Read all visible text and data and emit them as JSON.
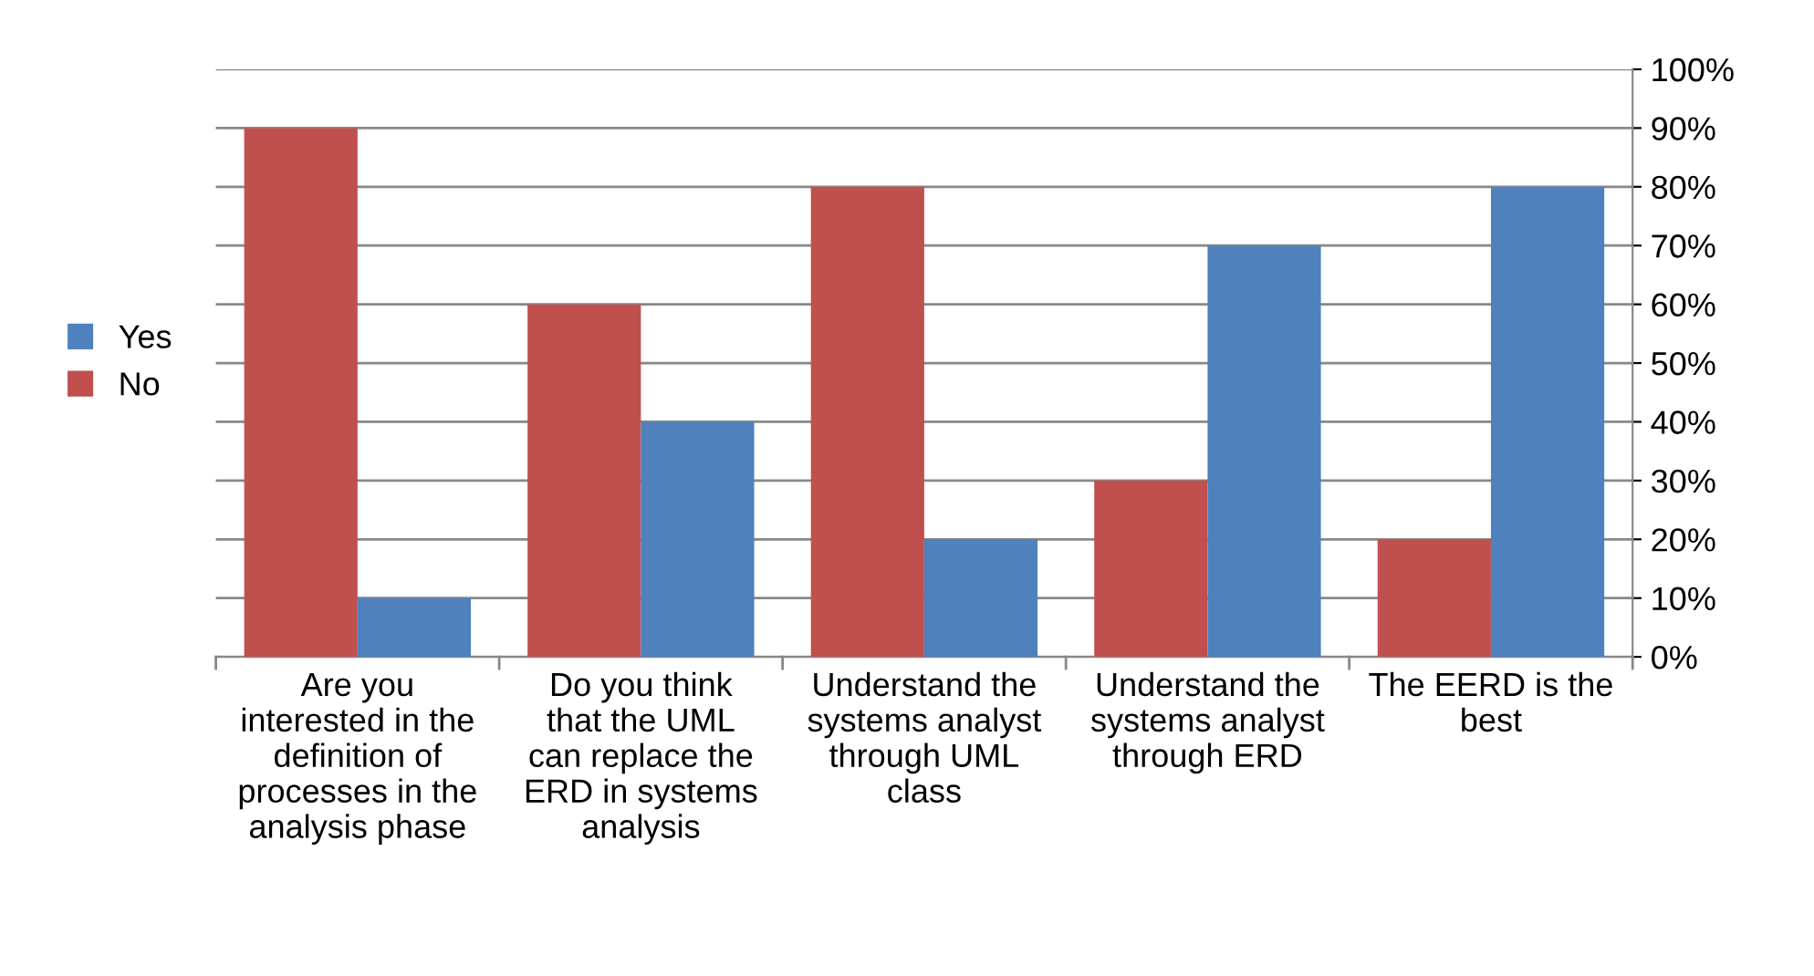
{
  "chart_data": {
    "type": "bar",
    "categories": [
      "Are you\ninterested in the\ndefinition of\nprocesses in the\nanalysis phase",
      "Do you think\nthat the UML\ncan replace the\nERD in systems\nanalysis",
      "Understand the\nsystems analyst\nthrough UML\nclass",
      "Understand the\nsystems analyst\nthrough ERD",
      "The EERD is the\nbest"
    ],
    "series": [
      {
        "name": "No",
        "color": "#c0504d",
        "values": [
          90,
          60,
          80,
          30,
          20
        ]
      },
      {
        "name": "Yes",
        "color": "#4f81bd",
        "values": [
          10,
          40,
          20,
          70,
          80
        ]
      }
    ],
    "ylim": [
      0,
      100
    ],
    "yticks": [
      {
        "value": 0,
        "label": "0%"
      },
      {
        "value": 10,
        "label": "10%"
      },
      {
        "value": 20,
        "label": "20%"
      },
      {
        "value": 30,
        "label": "30%"
      },
      {
        "value": 40,
        "label": "40%"
      },
      {
        "value": 50,
        "label": "50%"
      },
      {
        "value": 60,
        "label": "60%"
      },
      {
        "value": 70,
        "label": "70%"
      },
      {
        "value": 80,
        "label": "80%"
      },
      {
        "value": 90,
        "label": "90%"
      },
      {
        "value": 100,
        "label": "100%"
      }
    ],
    "grid": "y",
    "legend": "left"
  }
}
